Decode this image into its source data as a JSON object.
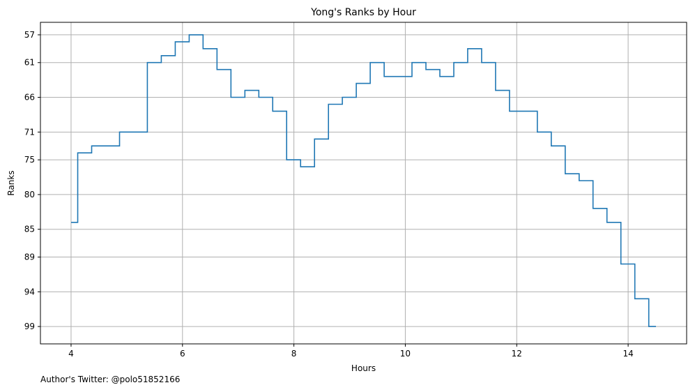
{
  "chart_data": {
    "type": "line",
    "style": "step-post",
    "title": "Yong's Ranks by Hour",
    "xlabel": "Hours",
    "ylabel": "Ranks",
    "xlim": [
      3.45,
      15.05
    ],
    "ylim": [
      101.5,
      55.2
    ],
    "y_inverted": true,
    "grid": true,
    "x_ticks": [
      4,
      6,
      8,
      10,
      12,
      14
    ],
    "y_ticks": [
      57,
      61,
      66,
      71,
      75,
      80,
      85,
      89,
      94,
      99
    ],
    "line_color": "#1f77b4",
    "grid_color": "#b0b0b0",
    "series": [
      {
        "x": [
          4.0,
          4.12,
          4.37,
          4.87,
          5.37,
          5.62,
          5.87,
          6.12,
          6.37,
          6.62,
          6.87,
          7.12,
          7.37,
          7.62,
          7.87,
          8.12,
          8.37,
          8.62,
          8.87,
          9.12,
          9.37,
          9.62,
          10.12,
          10.37,
          10.62,
          10.87,
          11.12,
          11.37,
          11.62,
          11.87,
          12.37,
          12.62,
          12.87,
          13.12,
          13.37,
          13.62,
          13.87,
          14.12,
          14.37,
          14.5
        ],
        "y": [
          84,
          74,
          73,
          71,
          61,
          60,
          58,
          57,
          59,
          62,
          66,
          65,
          66,
          68,
          75,
          76,
          72,
          67,
          66,
          64,
          61,
          63,
          61,
          62,
          63,
          61,
          59,
          61,
          65,
          68,
          71,
          73,
          77,
          78,
          82,
          84,
          90,
          95,
          99,
          99
        ]
      }
    ]
  },
  "footer": {
    "credit": "Author's Twitter: @polo51852166"
  }
}
